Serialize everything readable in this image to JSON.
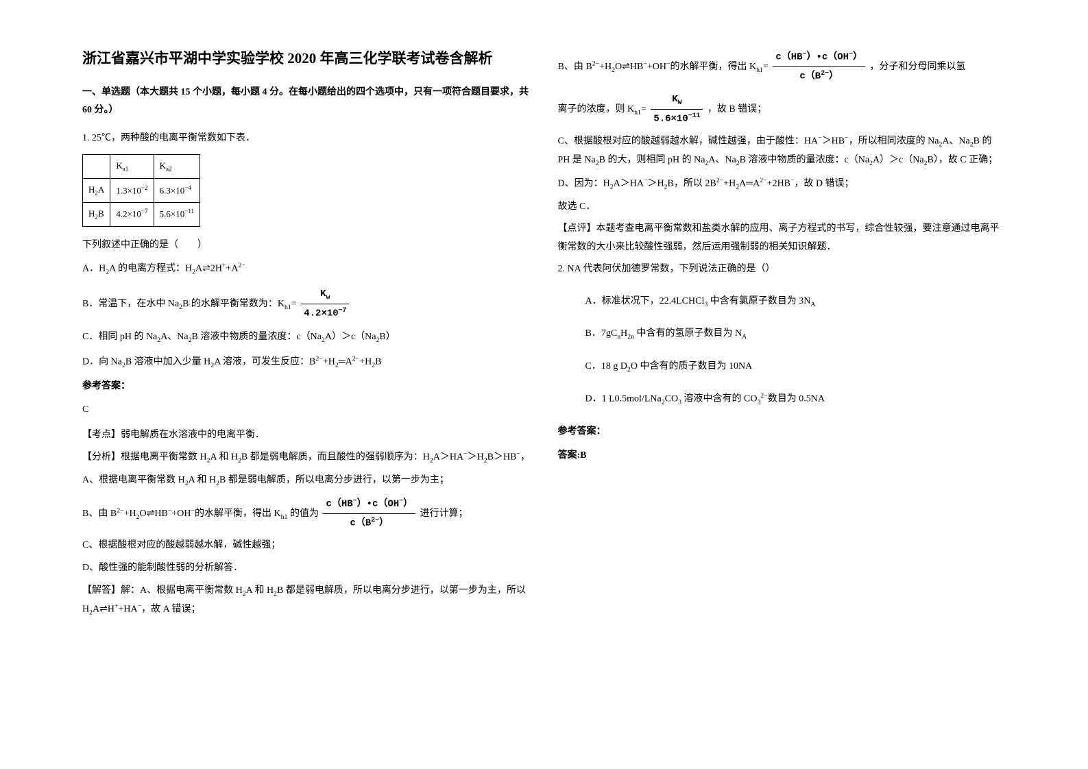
{
  "title": "浙江省嘉兴市平湖中学实验学校 2020 年高三化学联考试卷含解析",
  "section1_header": "一、单选题（本大题共 15 个小题，每小题 4 分。在每小题给出的四个选项中，只有一项符合题目要求，共 60 分。）",
  "q1_stem": "1. 25℃，两种酸的电离平衡常数如下表．",
  "table": {
    "r0c0": "",
    "r0c1": "K<sub>a1</sub>",
    "r0c2": "K<sub>a2</sub>",
    "r1c0": "H<sub>2</sub>A",
    "r1c1": "1.3×10<sup>−2</sup>",
    "r1c2": "6.3×10<sup>−4</sup>",
    "r2c0": "H<sub>2</sub>B",
    "r2c1": "4.2×10<sup>−7</sup>",
    "r2c2": "5.6×10<sup>−11</sup>"
  },
  "q1_prompt": "下列叙述中正确的是（　　）",
  "q1_A": "A．H<sub>2</sub>A 的电离方程式：H<sub>2</sub>A⇌2H<sup>+</sup>+A<sup>2−</sup>",
  "q1_B_pre": "B．常温下，在水中 Na<sub>2</sub>B 的水解平衡常数为：K<sub>h1</sub>=",
  "q1_B_frac_num": "K<sub>w</sub>",
  "q1_B_frac_den": "4.2×10<sup>−7</sup>",
  "q1_C": "C．相同 pH 的 Na<sub>2</sub>A、Na<sub>2</sub>B 溶液中物质的量浓度：c（Na<sub>2</sub>A）＞c（Na<sub>2</sub>B）",
  "q1_D": "D．向 Na<sub>2</sub>B 溶液中加入少量 H<sub>2</sub>A 溶液，可发生反应：B<sup>2−</sup>+H<sub>2</sub>═A<sup>2−</sup>+H<sub>2</sub>B",
  "ans_label1": "参考答案：",
  "ans1_letter": "C",
  "kaodian": "【考点】弱电解质在水溶液中的电离平衡．",
  "fenxi1": "【分析】根据电离平衡常数 H<sub>2</sub>A 和 H<sub>2</sub>B 都是弱电解质，而且酸性的强弱顺序为：H<sub>2</sub>A＞HA<sup>−</sup>＞H<sub>2</sub>B＞HB<sup>−</sup>，",
  "fenxi_A": "A、根据电离平衡常数 H<sub>2</sub>A 和 H<sub>2</sub>B 都是弱电解质，所以电离分步进行，以第一步为主；",
  "fenxi_B_pre": "B、由 B<sup>2−</sup>+H<sub>2</sub>O⇌HB<sup>−</sup>+OH<sup>−</sup>的水解平衡，得出 K<sub>h1</sub> 的值为",
  "fenxi_B_frac_num": "c（HB<sup>−</sup>）•c（OH<sup>−</sup>）",
  "fenxi_B_frac_den": "c（B<sup>2−</sup>）",
  "fenxi_B_post": "进行计算；",
  "fenxi_C": "C、根据酸根对应的酸越弱越水解，碱性越强；",
  "fenxi_D": "D、酸性强的能制酸性弱的分析解答．",
  "jieda_A_pre": "【解答】解：A、根据电离平衡常数 H<sub>2</sub>A 和 H<sub>2</sub>B 都是弱电解质，所以电离分步进行，以第一步为主，所以 H<sub>2</sub>A⇌H<sup>+</sup>+HA<sup>−</sup>，故 A 错误；",
  "col2_B_pre": "B、由 B<sup>2−</sup>+H<sub>2</sub>O⇌HB<sup>−</sup>+OH<sup>−</sup>的水解平衡，得出 K<sub>h1</sub>=",
  "col2_B_frac_num": "c（HB<sup>−</sup>）•c（OH<sup>−</sup>）",
  "col2_B_frac_den": "c（B<sup>2−</sup>）",
  "col2_B_post": "，分子和分母同乘以氢",
  "col2_B2_pre": "离子的浓度，则 K<sub>h1</sub>=",
  "col2_B2_frac_num": "K<sub>W</sub>",
  "col2_B2_frac_den": "5.6×10<sup>−11</sup>",
  "col2_B2_post": "，故 B 错误；",
  "col2_C": "C、根据酸根对应的酸越弱越水解，碱性越强，由于酸性：HA<sup>−</sup>＞HB<sup>−</sup>，所以相同浓度的 Na<sub>2</sub>A、Na<sub>2</sub>B 的 PH 是 Na<sub>2</sub>B 的大，则相同 pH 的 Na<sub>2</sub>A、Na<sub>2</sub>B 溶液中物质的量浓度：c（Na<sub>2</sub>A）＞c（Na<sub>2</sub>B），故 C 正确；",
  "col2_D": "D、因为：H<sub>2</sub>A＞HA<sup>−</sup>＞H<sub>2</sub>B，所以 2B<sup>2−</sup>+H<sub>2</sub>A═A<sup>2−</sup>+2HB<sup>−</sup>，故 D 错误；",
  "col2_choose": "故选 C．",
  "dianping": "【点评】本题考查电离平衡常数和盐类水解的应用、离子方程式的书写，综合性较强，要注意通过电离平衡常数的大小来比较酸性强弱，然后运用强制弱的相关知识解题．",
  "q2_stem": "2. NA 代表阿伏加德罗常数，下列说法正确的是（）",
  "q2_A": "A．标准状况下，22.4LCHCl<sub>3</sub> 中含有氯原子数目为 3N<sub>A</sub>",
  "q2_B": "B．7gC<sub>n</sub>H<sub>2n</sub> 中含有的氢原子数目为 N<sub>A</sub>",
  "q2_C": "C．18 g D<sub>2</sub>O 中含有的质子数目为 10NA",
  "q2_D": "D．1 L0.5mol/LNa<sub>2</sub>CO<sub>3</sub> 溶液中含有的 CO<sub>3</sub><sup>2−</sup>数目为 0.5NA",
  "ans_label2": "参考答案：",
  "ans2_text": "答案:B"
}
